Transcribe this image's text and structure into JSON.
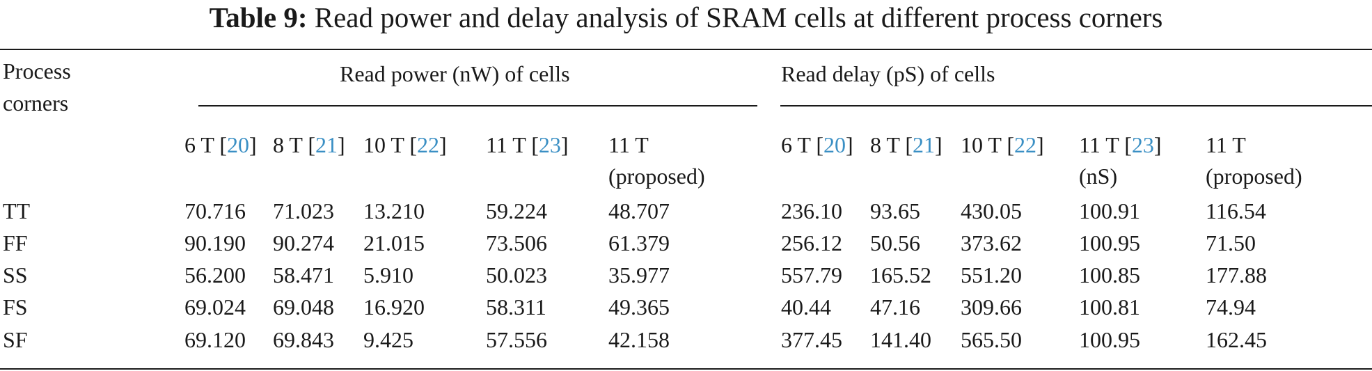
{
  "caption": {
    "label": "Table 9:",
    "text": "Read power and delay analysis of SRAM cells at different process corners"
  },
  "header": {
    "row_header_line1": "Process",
    "row_header_line2": "corners",
    "group_power": "Read power (nW) of cells",
    "group_delay": "Read delay (pS) of cells"
  },
  "power_cols": [
    {
      "name": "6 T",
      "ref": "20",
      "line2": ""
    },
    {
      "name": "8 T",
      "ref": "21",
      "line2": ""
    },
    {
      "name": "10 T",
      "ref": "22",
      "line2": ""
    },
    {
      "name": "11 T",
      "ref": "23",
      "line2": ""
    },
    {
      "name": "11 T",
      "ref": "",
      "line2": "(proposed)"
    }
  ],
  "delay_cols": [
    {
      "name": "6 T",
      "ref": "20",
      "line2": ""
    },
    {
      "name": "8 T",
      "ref": "21",
      "line2": ""
    },
    {
      "name": "10 T",
      "ref": "22",
      "line2": ""
    },
    {
      "name": "11 T",
      "ref": "23",
      "line2": "(nS)"
    },
    {
      "name": "11 T",
      "ref": "",
      "line2": "(proposed)"
    }
  ],
  "rows": [
    {
      "corner": "TT",
      "power": [
        "70.716",
        "71.023",
        "13.210",
        "59.224",
        "48.707"
      ],
      "delay": [
        "236.10",
        "93.65",
        "430.05",
        "100.91",
        "116.54"
      ]
    },
    {
      "corner": "FF",
      "power": [
        "90.190",
        "90.274",
        "21.015",
        "73.506",
        "61.379"
      ],
      "delay": [
        "256.12",
        "50.56",
        "373.62",
        "100.95",
        "71.50"
      ]
    },
    {
      "corner": "SS",
      "power": [
        "56.200",
        "58.471",
        "5.910",
        "50.023",
        "35.977"
      ],
      "delay": [
        "557.79",
        "165.52",
        "551.20",
        "100.85",
        "177.88"
      ]
    },
    {
      "corner": "FS",
      "power": [
        "69.024",
        "69.048",
        "16.920",
        "58.311",
        "49.365"
      ],
      "delay": [
        "40.44",
        "47.16",
        "309.66",
        "100.81",
        "74.94"
      ]
    },
    {
      "corner": "SF",
      "power": [
        "69.120",
        "69.843",
        "9.425",
        "57.556",
        "42.158"
      ],
      "delay": [
        "377.45",
        "141.40",
        "565.50",
        "100.95",
        "162.45"
      ]
    }
  ],
  "colors": {
    "text": "#1a1a1a",
    "ref_link": "#3a8fc4"
  }
}
